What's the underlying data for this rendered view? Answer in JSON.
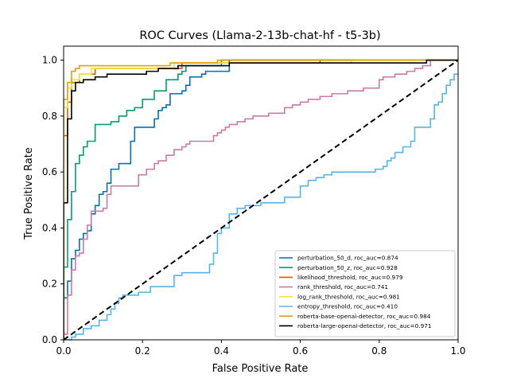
{
  "chart_data": {
    "type": "line",
    "title": "ROC Curves (Llama-2-13b-chat-hf - t5-3b)",
    "xlabel": "False Positive Rate",
    "ylabel": "True Positive Rate",
    "xlim": [
      0,
      1
    ],
    "ylim": [
      0,
      1.05
    ],
    "xticks": [
      "0.0",
      "0.2",
      "0.4",
      "0.6",
      "0.8",
      "1.0"
    ],
    "yticks": [
      "0.0",
      "0.2",
      "0.4",
      "0.6",
      "0.8",
      "1.0"
    ],
    "grid": false,
    "legend_position": "lower-right",
    "diagonal": {
      "x": [
        0,
        1
      ],
      "y": [
        0,
        1
      ],
      "color": "#000000",
      "style": "dashed"
    },
    "series": [
      {
        "name": "perturbation_50_d, roc_auc=0.874",
        "color": "#0072B2",
        "x": [
          0,
          0,
          0.01,
          0.01,
          0.02,
          0.02,
          0.03,
          0.03,
          0.04,
          0.04,
          0.05,
          0.05,
          0.06,
          0.06,
          0.07,
          0.07,
          0.08,
          0.08,
          0.09,
          0.09,
          0.1,
          0.1,
          0.11,
          0.11,
          0.12,
          0.12,
          0.14,
          0.14,
          0.17,
          0.17,
          0.18,
          0.18,
          0.23,
          0.23,
          0.24,
          0.24,
          0.25,
          0.25,
          0.26,
          0.26,
          0.27,
          0.27,
          0.3,
          0.3,
          0.31,
          0.31,
          0.32,
          0.32,
          0.35,
          0.35,
          0.36,
          0.36,
          0.42,
          0.42,
          1.0
        ],
        "y": [
          0,
          0.15,
          0.15,
          0.21,
          0.21,
          0.29,
          0.29,
          0.32,
          0.32,
          0.36,
          0.36,
          0.38,
          0.38,
          0.39,
          0.39,
          0.45,
          0.45,
          0.48,
          0.48,
          0.52,
          0.52,
          0.53,
          0.53,
          0.56,
          0.56,
          0.61,
          0.61,
          0.63,
          0.63,
          0.71,
          0.71,
          0.76,
          0.76,
          0.79,
          0.79,
          0.82,
          0.82,
          0.83,
          0.83,
          0.84,
          0.84,
          0.88,
          0.88,
          0.89,
          0.89,
          0.91,
          0.91,
          0.94,
          0.94,
          0.95,
          0.95,
          0.96,
          0.96,
          1.0,
          1.0
        ]
      },
      {
        "name": "perturbation_50_z, roc_auc=0.928",
        "color": "#009E73",
        "x": [
          0,
          0,
          0.01,
          0.01,
          0.02,
          0.02,
          0.03,
          0.03,
          0.04,
          0.04,
          0.05,
          0.05,
          0.06,
          0.06,
          0.08,
          0.08,
          0.12,
          0.12,
          0.14,
          0.14,
          0.16,
          0.16,
          0.18,
          0.18,
          0.2,
          0.2,
          0.23,
          0.23,
          0.26,
          0.26,
          0.29,
          0.29,
          0.3,
          0.3,
          0.31,
          0.31,
          0.4,
          0.4,
          1.0
        ],
        "y": [
          0,
          0.26,
          0.26,
          0.43,
          0.43,
          0.53,
          0.53,
          0.63,
          0.63,
          0.66,
          0.66,
          0.69,
          0.69,
          0.71,
          0.71,
          0.77,
          0.77,
          0.78,
          0.78,
          0.8,
          0.8,
          0.82,
          0.82,
          0.83,
          0.83,
          0.86,
          0.86,
          0.89,
          0.89,
          0.93,
          0.93,
          0.95,
          0.95,
          0.96,
          0.96,
          0.98,
          0.98,
          1.0,
          1.0
        ]
      },
      {
        "name": "likelihood_threshold, roc_auc=0.979",
        "color": "#D55E00",
        "x": [
          0,
          0,
          0.01,
          0.01,
          0.02,
          0.02,
          0.04,
          0.04,
          0.08,
          0.08,
          0.3,
          0.3,
          0.65,
          0.65,
          1.0
        ],
        "y": [
          0,
          0.73,
          0.73,
          0.85,
          0.85,
          0.92,
          0.92,
          0.95,
          0.95,
          0.97,
          0.97,
          0.99,
          0.99,
          1.0,
          1.0
        ]
      },
      {
        "name": "rank_threshold, roc_auc=0.741",
        "color": "#CC79A7",
        "x": [
          0,
          0,
          0.01,
          0.01,
          0.02,
          0.02,
          0.03,
          0.03,
          0.04,
          0.04,
          0.05,
          0.05,
          0.06,
          0.06,
          0.07,
          0.07,
          0.1,
          0.1,
          0.11,
          0.11,
          0.12,
          0.12,
          0.19,
          0.19,
          0.21,
          0.21,
          0.23,
          0.23,
          0.24,
          0.24,
          0.26,
          0.26,
          0.28,
          0.28,
          0.3,
          0.3,
          0.31,
          0.31,
          0.32,
          0.32,
          0.38,
          0.38,
          0.39,
          0.39,
          0.4,
          0.4,
          0.41,
          0.41,
          0.42,
          0.42,
          0.44,
          0.44,
          0.46,
          0.46,
          0.48,
          0.48,
          0.52,
          0.52,
          0.56,
          0.56,
          0.58,
          0.58,
          0.6,
          0.6,
          0.62,
          0.62,
          0.65,
          0.65,
          0.68,
          0.68,
          0.72,
          0.72,
          0.76,
          0.76,
          0.8,
          0.8,
          0.81,
          0.81,
          0.84,
          0.84,
          0.87,
          0.87,
          0.89,
          0.89,
          0.91,
          0.91,
          0.93,
          0.93,
          1.0
        ],
        "y": [
          0,
          0.02,
          0.02,
          0.16,
          0.16,
          0.25,
          0.25,
          0.3,
          0.3,
          0.31,
          0.31,
          0.36,
          0.36,
          0.41,
          0.41,
          0.46,
          0.46,
          0.47,
          0.47,
          0.52,
          0.52,
          0.55,
          0.55,
          0.59,
          0.59,
          0.61,
          0.61,
          0.63,
          0.63,
          0.64,
          0.64,
          0.66,
          0.66,
          0.68,
          0.68,
          0.69,
          0.69,
          0.7,
          0.7,
          0.71,
          0.71,
          0.73,
          0.73,
          0.74,
          0.74,
          0.75,
          0.75,
          0.76,
          0.76,
          0.77,
          0.77,
          0.78,
          0.78,
          0.79,
          0.79,
          0.8,
          0.8,
          0.81,
          0.81,
          0.83,
          0.83,
          0.84,
          0.84,
          0.85,
          0.85,
          0.86,
          0.86,
          0.87,
          0.87,
          0.88,
          0.88,
          0.89,
          0.89,
          0.9,
          0.9,
          0.93,
          0.93,
          0.94,
          0.94,
          0.95,
          0.95,
          0.96,
          0.96,
          0.97,
          0.97,
          0.98,
          0.98,
          1.0,
          1.0
        ]
      },
      {
        "name": "log_rank_threshold, roc_auc=0.981",
        "color": "#F0E442",
        "x": [
          0,
          0,
          0.01,
          0.01,
          0.02,
          0.02,
          0.04,
          0.04,
          0.07,
          0.07,
          0.28,
          0.28,
          0.73,
          0.73,
          1.0
        ],
        "y": [
          0,
          0.83,
          0.83,
          0.9,
          0.9,
          0.93,
          0.93,
          0.95,
          0.95,
          0.97,
          0.97,
          0.99,
          0.99,
          1.0,
          1.0
        ]
      },
      {
        "name": "entropy_threshold, roc_auc=0.410",
        "color": "#56B4E9",
        "x": [
          0,
          0.02,
          0.02,
          0.03,
          0.03,
          0.05,
          0.05,
          0.07,
          0.07,
          0.09,
          0.09,
          0.11,
          0.11,
          0.12,
          0.12,
          0.13,
          0.13,
          0.14,
          0.14,
          0.15,
          0.15,
          0.19,
          0.19,
          0.22,
          0.22,
          0.28,
          0.28,
          0.3,
          0.3,
          0.37,
          0.37,
          0.38,
          0.38,
          0.39,
          0.39,
          0.4,
          0.4,
          0.42,
          0.42,
          0.44,
          0.44,
          0.46,
          0.46,
          0.5,
          0.5,
          0.56,
          0.56,
          0.6,
          0.6,
          0.62,
          0.62,
          0.64,
          0.64,
          0.66,
          0.66,
          0.68,
          0.68,
          0.79,
          0.79,
          0.81,
          0.81,
          0.82,
          0.82,
          0.83,
          0.83,
          0.84,
          0.84,
          0.86,
          0.86,
          0.88,
          0.88,
          0.89,
          0.89,
          0.93,
          0.93,
          0.94,
          0.94,
          0.95,
          0.95,
          0.96,
          0.96,
          0.97,
          0.97,
          0.98,
          0.98,
          0.99,
          0.99,
          1.0
        ],
        "y": [
          0,
          0,
          0.01,
          0.01,
          0.02,
          0.02,
          0.04,
          0.04,
          0.05,
          0.05,
          0.07,
          0.07,
          0.09,
          0.09,
          0.11,
          0.11,
          0.13,
          0.13,
          0.15,
          0.15,
          0.16,
          0.16,
          0.17,
          0.17,
          0.19,
          0.19,
          0.23,
          0.23,
          0.24,
          0.24,
          0.27,
          0.27,
          0.31,
          0.31,
          0.38,
          0.38,
          0.4,
          0.4,
          0.45,
          0.45,
          0.47,
          0.47,
          0.48,
          0.48,
          0.49,
          0.49,
          0.51,
          0.51,
          0.55,
          0.55,
          0.57,
          0.57,
          0.58,
          0.58,
          0.59,
          0.59,
          0.6,
          0.6,
          0.61,
          0.61,
          0.62,
          0.62,
          0.64,
          0.64,
          0.65,
          0.65,
          0.67,
          0.67,
          0.69,
          0.69,
          0.71,
          0.71,
          0.76,
          0.76,
          0.79,
          0.79,
          0.84,
          0.84,
          0.85,
          0.85,
          0.88,
          0.88,
          0.91,
          0.91,
          0.93,
          0.93,
          0.95,
          0.95
        ]
      },
      {
        "name": "roberta-base-openai-detector, roc_auc=0.984",
        "color": "#E69F00",
        "x": [
          0,
          0,
          0.01,
          0.01,
          0.02,
          0.02,
          0.03,
          0.03,
          0.04,
          0.04,
          0.27,
          0.27,
          0.39,
          0.39,
          0.92,
          0.92,
          1.0
        ],
        "y": [
          0,
          0.86,
          0.86,
          0.92,
          0.92,
          0.96,
          0.96,
          0.97,
          0.97,
          0.98,
          0.98,
          0.99,
          0.99,
          1.0,
          1.0,
          1.0,
          1.0
        ]
      },
      {
        "name": "roberta-large-openai-detector, roc_auc=0.971",
        "color": "#000000",
        "x": [
          0,
          0,
          0.01,
          0.01,
          0.02,
          0.02,
          0.03,
          0.03,
          0.05,
          0.05,
          0.08,
          0.08,
          0.11,
          0.11,
          0.21,
          0.21,
          0.24,
          0.24,
          0.29,
          0.29,
          0.42,
          0.42,
          0.92,
          0.92,
          1.0
        ],
        "y": [
          0,
          0.49,
          0.49,
          0.79,
          0.79,
          0.89,
          0.89,
          0.92,
          0.92,
          0.93,
          0.93,
          0.94,
          0.94,
          0.95,
          0.95,
          0.96,
          0.96,
          0.97,
          0.97,
          0.98,
          0.98,
          0.99,
          0.99,
          1.0,
          1.0
        ]
      }
    ]
  }
}
